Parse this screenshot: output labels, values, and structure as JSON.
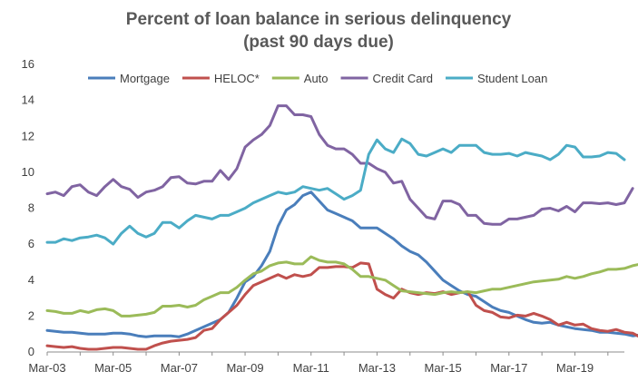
{
  "chart_data": {
    "type": "line",
    "title": "Percent of loan balance in serious delinquency",
    "subtitle": "(past 90 days due)",
    "xlabel": "",
    "ylabel": "",
    "ylim": [
      0,
      16
    ],
    "yticks": [
      0,
      2,
      4,
      6,
      8,
      10,
      12,
      14,
      16
    ],
    "x_start": 2003.0,
    "x_end": 2020.5,
    "x_step": 0.25,
    "xtick_labels": [
      "Mar-03",
      "Mar-05",
      "Mar-07",
      "Mar-09",
      "Mar-11",
      "Mar-13",
      "Mar-15",
      "Mar-17",
      "Mar-19"
    ],
    "xtick_values": [
      2003,
      2005,
      2007,
      2009,
      2011,
      2013,
      2015,
      2017,
      2019
    ],
    "legend_position": "top",
    "series": [
      {
        "name": "Mortgage",
        "color": "#4a7ebb",
        "values": [
          1.2,
          1.15,
          1.1,
          1.1,
          1.05,
          1.0,
          1.0,
          1.0,
          1.05,
          1.05,
          1.0,
          0.9,
          0.85,
          0.9,
          0.9,
          0.9,
          0.85,
          1.0,
          1.2,
          1.4,
          1.6,
          1.8,
          2.2,
          3.0,
          3.9,
          4.2,
          4.8,
          5.6,
          7.0,
          7.9,
          8.2,
          8.7,
          8.9,
          8.4,
          7.9,
          7.7,
          7.5,
          7.3,
          6.9,
          6.9,
          6.9,
          6.6,
          6.3,
          5.9,
          5.6,
          5.4,
          5.0,
          4.5,
          4.0,
          3.7,
          3.4,
          3.2,
          3.1,
          2.8,
          2.5,
          2.3,
          2.2,
          2.0,
          1.8,
          1.65,
          1.6,
          1.65,
          1.5,
          1.4,
          1.3,
          1.25,
          1.2,
          1.1,
          1.1,
          1.05,
          1.0,
          0.9,
          0.95,
          1.05,
          1.1
        ]
      },
      {
        "name": "HELOC*",
        "color": "#c0504d",
        "values": [
          0.35,
          0.3,
          0.25,
          0.3,
          0.2,
          0.15,
          0.15,
          0.2,
          0.25,
          0.25,
          0.2,
          0.15,
          0.15,
          0.35,
          0.5,
          0.6,
          0.65,
          0.7,
          0.8,
          1.2,
          1.3,
          1.8,
          2.2,
          2.6,
          3.2,
          3.7,
          3.9,
          4.1,
          4.3,
          4.1,
          4.3,
          4.2,
          4.3,
          4.7,
          4.7,
          4.75,
          4.75,
          4.7,
          4.95,
          4.9,
          3.5,
          3.2,
          3.0,
          3.5,
          3.3,
          3.2,
          3.3,
          3.25,
          3.35,
          3.2,
          3.3,
          3.35,
          2.6,
          2.3,
          2.2,
          1.95,
          1.9,
          2.05,
          2.0,
          2.15,
          2.0,
          1.8,
          1.5,
          1.65,
          1.5,
          1.55,
          1.3,
          1.2,
          1.15,
          1.25,
          1.1,
          1.05,
          0.8,
          1.0,
          1.2
        ]
      },
      {
        "name": "Auto",
        "color": "#9bbb59",
        "values": [
          2.3,
          2.25,
          2.15,
          2.15,
          2.3,
          2.2,
          2.35,
          2.4,
          2.3,
          2.0,
          2.0,
          2.05,
          2.1,
          2.2,
          2.55,
          2.55,
          2.6,
          2.5,
          2.6,
          2.9,
          3.1,
          3.3,
          3.3,
          3.6,
          4.0,
          4.35,
          4.5,
          4.8,
          4.95,
          5.0,
          4.9,
          4.9,
          5.3,
          5.1,
          5.0,
          5.0,
          4.9,
          4.6,
          4.2,
          4.2,
          4.1,
          4.0,
          3.7,
          3.4,
          3.35,
          3.3,
          3.25,
          3.2,
          3.3,
          3.35,
          3.3,
          3.35,
          3.3,
          3.4,
          3.5,
          3.5,
          3.6,
          3.7,
          3.8,
          3.9,
          3.95,
          4.0,
          4.05,
          4.2,
          4.1,
          4.2,
          4.35,
          4.45,
          4.6,
          4.6,
          4.65,
          4.8,
          4.9,
          5.0,
          5.05
        ]
      },
      {
        "name": "Credit Card",
        "color": "#8064a2",
        "values": [
          8.8,
          8.9,
          8.7,
          9.2,
          9.3,
          8.9,
          8.7,
          9.2,
          9.6,
          9.2,
          9.05,
          8.6,
          8.9,
          9.0,
          9.2,
          9.7,
          9.75,
          9.4,
          9.35,
          9.5,
          9.5,
          10.1,
          9.6,
          10.2,
          11.4,
          11.8,
          12.1,
          12.6,
          13.7,
          13.7,
          13.2,
          13.2,
          13.1,
          12.1,
          11.5,
          11.3,
          11.3,
          11.0,
          10.5,
          10.5,
          10.2,
          10.0,
          9.4,
          9.5,
          8.5,
          8.0,
          7.5,
          7.4,
          8.4,
          8.4,
          8.2,
          7.6,
          7.6,
          7.15,
          7.1,
          7.1,
          7.4,
          7.4,
          7.5,
          7.6,
          7.95,
          8.0,
          7.85,
          8.1,
          7.8,
          8.3,
          8.3,
          8.25,
          8.3,
          8.2,
          8.3,
          9.1
        ]
      },
      {
        "name": "Student Loan",
        "color": "#4bacc6",
        "values": [
          6.1,
          6.1,
          6.3,
          6.2,
          6.35,
          6.4,
          6.5,
          6.35,
          6.0,
          6.6,
          7.0,
          6.6,
          6.4,
          6.6,
          7.2,
          7.2,
          6.9,
          7.3,
          7.6,
          7.5,
          7.4,
          7.6,
          7.6,
          7.8,
          8.0,
          8.3,
          8.5,
          8.7,
          8.9,
          8.8,
          8.9,
          9.2,
          9.1,
          9.0,
          9.1,
          8.8,
          8.5,
          8.7,
          9.0,
          11.0,
          11.8,
          11.3,
          11.1,
          11.85,
          11.6,
          11.0,
          10.9,
          11.1,
          11.3,
          11.1,
          11.5,
          11.5,
          11.5,
          11.1,
          11.0,
          11.0,
          11.05,
          10.9,
          11.1,
          11.0,
          10.9,
          10.7,
          11.0,
          11.5,
          11.4,
          10.85,
          10.85,
          10.9,
          11.1,
          11.05,
          10.7
        ]
      }
    ]
  }
}
